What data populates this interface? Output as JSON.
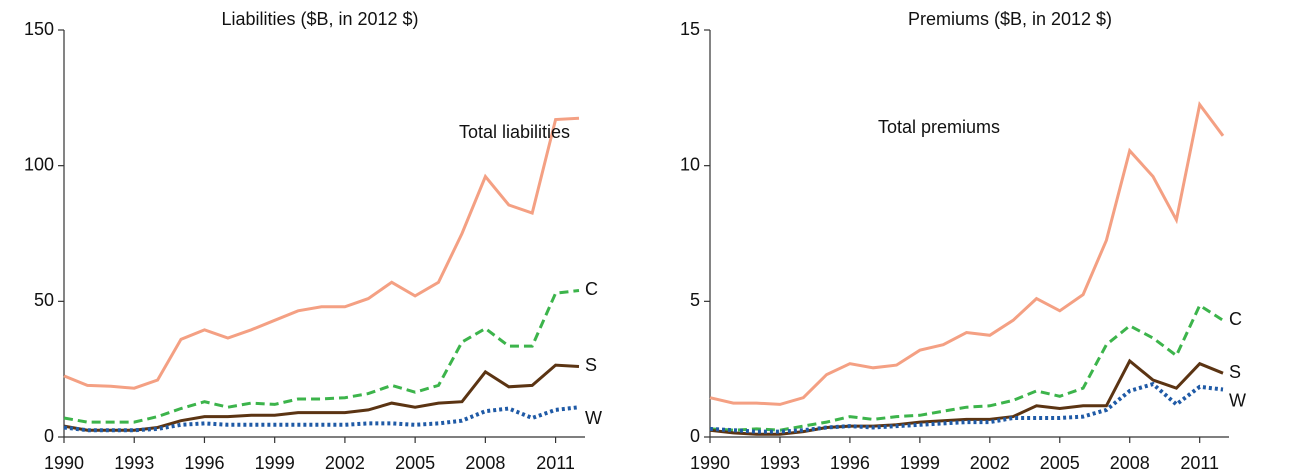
{
  "chart_data": [
    {
      "type": "line",
      "title": "Liabilities ($B, in 2012 $)",
      "x": [
        1990,
        1991,
        1992,
        1993,
        1994,
        1995,
        1996,
        1997,
        1998,
        1999,
        2000,
        2001,
        2002,
        2003,
        2004,
        2005,
        2006,
        2007,
        2008,
        2009,
        2010,
        2011,
        2012
      ],
      "xlim": [
        1990,
        2012
      ],
      "xticks": [
        1990,
        1993,
        1996,
        1999,
        2002,
        2005,
        2008,
        2011
      ],
      "ylim": [
        0,
        150
      ],
      "yticks": [
        0,
        50,
        100,
        150
      ],
      "series": [
        {
          "name": "Total liabilities",
          "color": "#f4a083",
          "style": "solid",
          "values": [
            22.5,
            19,
            18.7,
            18,
            21,
            36,
            39.5,
            36.5,
            39.5,
            43,
            46.5,
            48,
            48,
            51,
            57,
            52,
            57,
            75,
            96,
            85.5,
            82.5,
            117,
            117.5
          ]
        },
        {
          "name": "C",
          "color": "#3cb44b",
          "style": "dashed",
          "values": [
            7,
            5.5,
            5.5,
            5.5,
            7.5,
            10.5,
            13,
            11,
            12.5,
            12,
            14,
            14,
            14.5,
            16,
            19,
            16.5,
            19,
            35,
            40,
            33.5,
            33.5,
            53,
            54
          ]
        },
        {
          "name": "S",
          "color": "#5b3413",
          "style": "solid",
          "values": [
            4,
            2.5,
            2.5,
            2.5,
            3.5,
            6,
            7.5,
            7.5,
            8,
            8,
            9,
            9,
            9,
            10,
            12.5,
            11,
            12.5,
            13,
            24,
            18.5,
            19,
            26.5,
            26
          ]
        },
        {
          "name": "W",
          "color": "#1f5aa6",
          "style": "dotted",
          "values": [
            3.5,
            2.5,
            2.5,
            2.5,
            3,
            4.5,
            5,
            4.5,
            4.5,
            4.5,
            4.5,
            4.5,
            4.5,
            5,
            5,
            4.5,
            5,
            6,
            9.5,
            10.5,
            7,
            10,
            11
          ]
        }
      ]
    },
    {
      "type": "line",
      "title": "Premiums ($B, in 2012 $)",
      "x": [
        1990,
        1991,
        1992,
        1993,
        1994,
        1995,
        1996,
        1997,
        1998,
        1999,
        2000,
        2001,
        2002,
        2003,
        2004,
        2005,
        2006,
        2007,
        2008,
        2009,
        2010,
        2011,
        2012
      ],
      "xlim": [
        1990,
        2012
      ],
      "xticks": [
        1990,
        1993,
        1996,
        1999,
        2002,
        2005,
        2008,
        2011
      ],
      "ylim": [
        0,
        15
      ],
      "yticks": [
        0,
        5,
        10,
        15
      ],
      "series": [
        {
          "name": "Total premiums",
          "color": "#f4a083",
          "style": "solid",
          "values": [
            1.45,
            1.25,
            1.25,
            1.2,
            1.45,
            2.3,
            2.7,
            2.55,
            2.65,
            3.2,
            3.4,
            3.85,
            3.75,
            4.3,
            5.1,
            4.65,
            5.25,
            7.25,
            10.55,
            9.6,
            8,
            12.25,
            11.1
          ]
        },
        {
          "name": "C",
          "color": "#3cb44b",
          "style": "dashed",
          "values": [
            0.3,
            0.25,
            0.3,
            0.25,
            0.4,
            0.55,
            0.75,
            0.65,
            0.75,
            0.8,
            0.95,
            1.1,
            1.15,
            1.35,
            1.7,
            1.5,
            1.8,
            3.4,
            4.1,
            3.65,
            3,
            4.85,
            4.3
          ]
        },
        {
          "name": "S",
          "color": "#5b3413",
          "style": "solid",
          "values": [
            0.25,
            0.15,
            0.1,
            0.1,
            0.2,
            0.35,
            0.4,
            0.4,
            0.45,
            0.55,
            0.6,
            0.65,
            0.65,
            0.75,
            1.15,
            1.05,
            1.15,
            1.15,
            2.8,
            2.1,
            1.8,
            2.7,
            2.35
          ]
        },
        {
          "name": "W",
          "color": "#1f5aa6",
          "style": "dotted",
          "values": [
            0.3,
            0.25,
            0.2,
            0.2,
            0.25,
            0.35,
            0.4,
            0.35,
            0.4,
            0.45,
            0.5,
            0.55,
            0.55,
            0.7,
            0.7,
            0.7,
            0.75,
            1,
            1.7,
            1.95,
            1.2,
            1.85,
            1.75
          ]
        }
      ]
    }
  ]
}
